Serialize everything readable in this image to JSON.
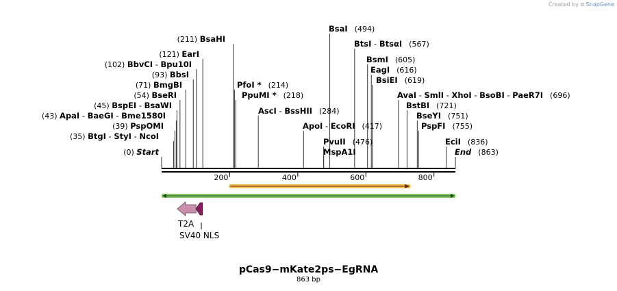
{
  "credit": {
    "prefix": "Created by",
    "brand": "SnapGene"
  },
  "map": {
    "title": "pCas9−mKate2ps−EgRNA",
    "length_label": "863 bp",
    "length_bp": 863
  },
  "ruler_ticks": [
    "200",
    "400",
    "600",
    "800"
  ],
  "sites": [
    {
      "id": "start",
      "pos": 0,
      "bp_label": "(0)",
      "names": [
        "Start"
      ],
      "italic": true
    },
    {
      "id": "btgi",
      "pos": 35,
      "bp_label": "(35)",
      "names": [
        "BtgI",
        "StyI",
        "NcoI"
      ]
    },
    {
      "id": "pspomi",
      "pos": 39,
      "bp_label": "(39)",
      "names": [
        "PspOMI"
      ]
    },
    {
      "id": "apai",
      "pos": 43,
      "bp_label": "(43)",
      "names": [
        "ApaI",
        "BaeGI",
        "Bme1580I"
      ]
    },
    {
      "id": "bspei",
      "pos": 45,
      "bp_label": "(45)",
      "names": [
        "BspEI",
        "BsaWI"
      ]
    },
    {
      "id": "bseri",
      "pos": 54,
      "bp_label": "(54)",
      "names": [
        "BseRI"
      ]
    },
    {
      "id": "bmgbi",
      "pos": 71,
      "bp_label": "(71)",
      "names": [
        "BmgBI"
      ]
    },
    {
      "id": "bbsi",
      "pos": 93,
      "bp_label": "(93)",
      "names": [
        "BbsI"
      ]
    },
    {
      "id": "bbvci",
      "pos": 102,
      "bp_label": "(102)",
      "names": [
        "BbvCI",
        "Bpu10I"
      ]
    },
    {
      "id": "eari",
      "pos": 121,
      "bp_label": "(121)",
      "names": [
        "EarI"
      ]
    },
    {
      "id": "bsahi",
      "pos": 211,
      "bp_label": "(211)",
      "names": [
        "BsaHI"
      ]
    },
    {
      "id": "pfoi",
      "pos": 214,
      "bp_label": "(214)",
      "names": [
        "PfoI *"
      ]
    },
    {
      "id": "ppumi",
      "pos": 218,
      "bp_label": "(218)",
      "names": [
        "PpuMI *"
      ]
    },
    {
      "id": "asci",
      "pos": 284,
      "bp_label": "(284)",
      "names": [
        "AscI",
        "BssHII"
      ]
    },
    {
      "id": "apoi",
      "pos": 417,
      "bp_label": "(417)",
      "names": [
        "ApoI",
        "EcoRI"
      ]
    },
    {
      "id": "pvuii",
      "pos": 476,
      "bp_label": "(476)",
      "names": [
        "PvuII"
      ]
    },
    {
      "id": "mspa1i",
      "pos": 476,
      "bp_label": "",
      "names": [
        "MspA1I"
      ]
    },
    {
      "id": "bsai",
      "pos": 494,
      "bp_label": "(494)",
      "names": [
        "BsaI"
      ]
    },
    {
      "id": "btsi",
      "pos": 567,
      "bp_label": "(567)",
      "names": [
        "BtsI",
        "BtsαI"
      ]
    },
    {
      "id": "bsmi",
      "pos": 605,
      "bp_label": "(605)",
      "names": [
        "BsmI"
      ]
    },
    {
      "id": "eagi",
      "pos": 616,
      "bp_label": "(616)",
      "names": [
        "EagI"
      ]
    },
    {
      "id": "bsiei",
      "pos": 619,
      "bp_label": "(619)",
      "names": [
        "BsiEI"
      ]
    },
    {
      "id": "avai",
      "pos": 696,
      "bp_label": "(696)",
      "names": [
        "AvaI",
        "SmlI",
        "XhoI",
        "BsoBI",
        "PaeR7I"
      ]
    },
    {
      "id": "bstbi",
      "pos": 721,
      "bp_label": "(721)",
      "names": [
        "BstBI"
      ]
    },
    {
      "id": "bseyi",
      "pos": 751,
      "bp_label": "(751)",
      "names": [
        "BseYI"
      ]
    },
    {
      "id": "pspfi",
      "pos": 755,
      "bp_label": "(755)",
      "names": [
        "PspFI"
      ]
    },
    {
      "id": "ecii",
      "pos": 836,
      "bp_label": "(836)",
      "names": [
        "EciI"
      ]
    },
    {
      "id": "end",
      "pos": 863,
      "bp_label": "(863)",
      "names": [
        "End"
      ],
      "italic": true
    }
  ],
  "features": [
    {
      "id": "orange-bar",
      "start": 200,
      "end": 727,
      "direction": "forward",
      "color": "#f5a623"
    },
    {
      "id": "green-bar",
      "start": 0,
      "end": 863,
      "direction": "both",
      "color": "#6cc04a"
    },
    {
      "id": "t2a",
      "label": "T2A",
      "start": 48,
      "end": 105,
      "direction": "reverse",
      "color": "#c98faa"
    },
    {
      "id": "sv40-nls",
      "label": "SV40 NLS",
      "start": 105,
      "end": 126,
      "direction": "reverse",
      "color": "#8b1f5e"
    }
  ]
}
